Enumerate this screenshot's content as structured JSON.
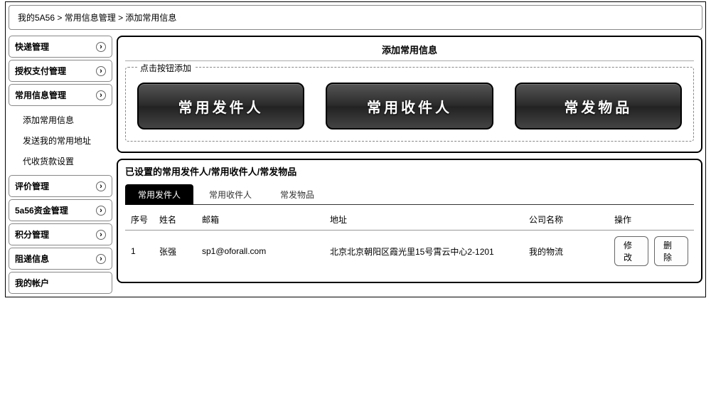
{
  "breadcrumb": {
    "a": "我的5A56",
    "sep1": " > ",
    "b": "常用信息管理",
    "sep2": " > ",
    "c": "添加常用信息"
  },
  "sidebar": {
    "items": [
      {
        "label": "快递管理"
      },
      {
        "label": "授权支付管理"
      },
      {
        "label": "常用信息管理"
      },
      {
        "label": "评价管理"
      },
      {
        "label": "5a56资金管理"
      },
      {
        "label": "积分管理"
      },
      {
        "label": "阻递信息"
      },
      {
        "label": "我的帐户"
      }
    ],
    "sub": [
      {
        "label": "添加常用信息"
      },
      {
        "label": "发送我的常用地址"
      },
      {
        "label": "代收货款设置"
      }
    ]
  },
  "panel": {
    "title": "添加常用信息",
    "legend": "点击按钮添加",
    "buttons": [
      {
        "label": "常用发件人"
      },
      {
        "label": "常用收件人"
      },
      {
        "label": "常发物品"
      }
    ]
  },
  "list": {
    "title": "已设置的常用发件人/常用收件人/常发物品",
    "tabs": [
      {
        "label": "常用发件人",
        "active": true
      },
      {
        "label": "常用收件人",
        "active": false
      },
      {
        "label": "常发物品",
        "active": false
      }
    ],
    "columns": {
      "idx": "序号",
      "name": "姓名",
      "email": "邮箱",
      "addr": "地址",
      "company": "公司名称",
      "op": "操作"
    },
    "rows": [
      {
        "idx": "1",
        "name": "张强",
        "email": "sp1@oforall.com",
        "addr": "北京北京朝阳区霞光里15号霄云中心2-1201",
        "company": "我的物流",
        "edit": "修改",
        "del": "删除"
      }
    ]
  },
  "colors": {
    "border": "#000000",
    "panel_border": "#000000",
    "dashed": "#888888",
    "big_btn_bg_top": "#555555",
    "big_btn_bg_bottom": "#222222",
    "big_btn_text": "#ffffff",
    "tab_active_bg": "#000000",
    "tab_active_text": "#ffffff"
  }
}
